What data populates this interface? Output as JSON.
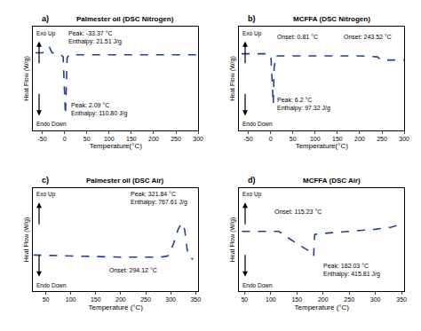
{
  "chart_data": [
    {
      "type": "line",
      "label": "a)",
      "title": "Palmester oil (DSC Nitrogen)",
      "x_label": "Temperature(°C)",
      "y_label": "Heat Flow (W/g)",
      "exo_label": "Exo Up",
      "endo_label": "Endo Down",
      "x": [
        -65,
        -50,
        -40,
        -33.37,
        -28,
        -10,
        -3,
        0,
        2.09,
        4,
        6,
        10,
        50,
        100,
        150,
        200,
        250,
        300
      ],
      "values": [
        7.5,
        7.5,
        7.6,
        8.0,
        7.5,
        7.4,
        7.1,
        4.0,
        1.5,
        4.0,
        7.0,
        7.3,
        7.3,
        7.3,
        7.3,
        7.3,
        7.3,
        7.3
      ],
      "color": "#24418f",
      "line_style": "dashed",
      "xlim": [
        -70,
        300
      ],
      "xticks": [
        -50,
        0,
        50,
        100,
        150,
        200,
        250,
        300
      ],
      "ylim": [
        0,
        10
      ],
      "tick_labels": "x",
      "annotations": [
        [
          "Peak: -33.37 °C",
          "Enthalpy: 21.51 J/g"
        ],
        [
          "Peak: 2.09 °C",
          "Enthalpy: 110.80 J/g"
        ]
      ]
    },
    {
      "type": "line",
      "label": "b)",
      "title": "MCFFA (DSC Nitrogen)",
      "x_label": "Temperature(°C)",
      "y_label": "Heat Flow (W/g)",
      "exo_label": "Exo Up",
      "endo_label": "Endo Down",
      "x": [
        -65,
        -30,
        -5,
        0.81,
        3,
        6.2,
        8,
        12,
        50,
        100,
        150,
        200,
        240,
        243.52,
        248,
        260,
        300
      ],
      "values": [
        7.4,
        7.4,
        7.4,
        7.2,
        5.0,
        2.5,
        6.0,
        7.2,
        7.2,
        7.2,
        7.2,
        7.2,
        7.1,
        7.0,
        6.8,
        6.8,
        6.8
      ],
      "color": "#24418f",
      "line_style": "dashed",
      "xlim": [
        -70,
        300
      ],
      "xticks": [
        -50,
        0,
        50,
        100,
        150,
        200,
        250,
        300
      ],
      "ylim": [
        0,
        10
      ],
      "tick_labels": "x",
      "annotations": [
        [
          "Onset: 0.81 °C"
        ],
        [
          "Peak: 6.2 °C",
          "Enthalpy: 97.32 J/g"
        ],
        [
          "Onset: 243.52 °C"
        ]
      ]
    },
    {
      "type": "line",
      "label": "c)",
      "title": "Palmester oil (DSC Air)",
      "x_label": "Temperature (°C)",
      "y_label": "Heat Flow (W/g)",
      "exo_label": "Exo Up",
      "endo_label": "Endo Down",
      "x": [
        25,
        100,
        200,
        280,
        294.12,
        305,
        315,
        321.84,
        328,
        333,
        340,
        345
      ],
      "values": [
        3.5,
        3.4,
        3.3,
        3.3,
        3.4,
        4.5,
        6.0,
        6.6,
        6.0,
        4.0,
        3.2,
        3.1
      ],
      "color": "#24418f",
      "line_style": "dashed",
      "xlim": [
        25,
        355
      ],
      "xticks": [
        50,
        100,
        150,
        200,
        250,
        300,
        350
      ],
      "ylim": [
        0,
        10
      ],
      "tick_labels": "x",
      "annotations": [
        [
          "Peak: 321.84 °C",
          "Enthalpy: 767.61 J/g"
        ],
        [
          "Onset: 294.12 °C"
        ]
      ]
    },
    {
      "type": "line",
      "label": "d)",
      "title": "MCFFA (DSC Air)",
      "x_label": "Temperature (°C)",
      "y_label": "Heat Flow (W/g)",
      "exo_label": "Exo Up",
      "endo_label": "Endo Down",
      "x": [
        45,
        100,
        115.23,
        130,
        150,
        170,
        182.03,
        184,
        200,
        250,
        300,
        330,
        350
      ],
      "values": [
        5.8,
        5.8,
        5.8,
        5.3,
        4.6,
        4.0,
        3.4,
        5.5,
        5.6,
        5.8,
        6.0,
        6.2,
        6.5
      ],
      "color": "#24418f",
      "line_style": "dashed",
      "xlim": [
        40,
        355
      ],
      "xticks": [
        50,
        100,
        150,
        200,
        250,
        300,
        350
      ],
      "ylim": [
        0,
        10
      ],
      "tick_labels": "x",
      "annotations": [
        [
          "Onset: 115.23 °C"
        ],
        [
          "Peak: 182.03 °C",
          "Enthalpy: 415.81 J/g"
        ]
      ]
    }
  ]
}
